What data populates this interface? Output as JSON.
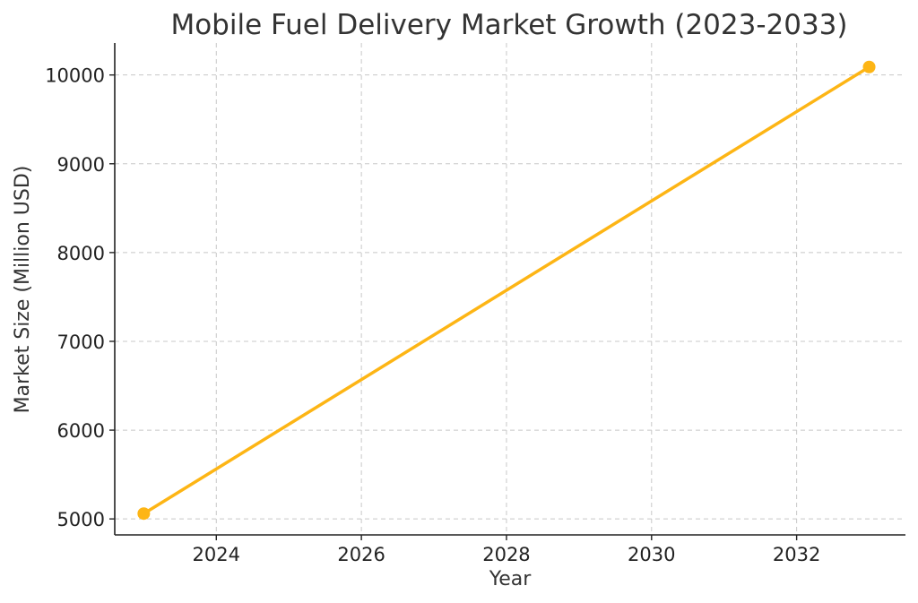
{
  "chart_data": {
    "type": "line",
    "title": "Mobile Fuel Delivery Market Growth (2023-2033)",
    "xlabel": "Year",
    "ylabel": "Market Size (Million USD)",
    "x": [
      2023,
      2033
    ],
    "series": [
      {
        "values": [
          5060,
          10090
        ],
        "color": "#FDB515",
        "marker": "circle"
      }
    ],
    "xlim": [
      2022.6,
      2033.5
    ],
    "ylim": [
      4820,
      10360
    ],
    "xticks": [
      2024,
      2026,
      2028,
      2030,
      2032
    ],
    "yticks": [
      5000,
      6000,
      7000,
      8000,
      9000,
      10000
    ],
    "grid": true,
    "legend": "none"
  }
}
